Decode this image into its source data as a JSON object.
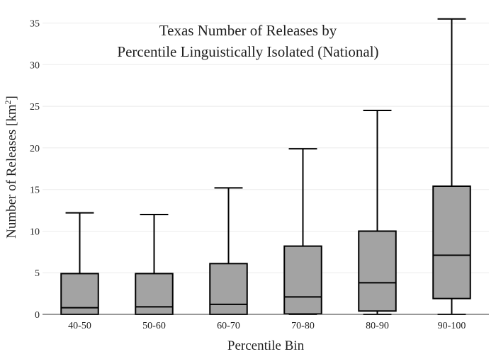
{
  "chart_data": {
    "type": "box",
    "title_line1": "Texas Number of Releases by",
    "title_line2": "Percentile Linguistically Isolated (National)",
    "xlabel": "Percentile Bin",
    "ylabel_main": "Number of Releases  [km",
    "ylabel_sup": "2",
    "ylabel_end": "]",
    "ylim": [
      0,
      36.5
    ],
    "yticks": [
      0,
      5,
      10,
      15,
      20,
      25,
      30,
      35
    ],
    "grid": true,
    "box_color": "#a3a3a3",
    "line_color": "#000000",
    "categories": [
      "40-50",
      "50-60",
      "60-70",
      "70-80",
      "80-90",
      "90-100"
    ],
    "boxes": [
      {
        "min": 0,
        "q1": 0,
        "median": 0.8,
        "q3": 4.9,
        "max": 12.2
      },
      {
        "min": 0,
        "q1": 0,
        "median": 0.9,
        "q3": 4.9,
        "max": 12.0
      },
      {
        "min": 0,
        "q1": 0,
        "median": 1.2,
        "q3": 6.1,
        "max": 15.2
      },
      {
        "min": 0,
        "q1": 0.05,
        "median": 2.1,
        "q3": 8.2,
        "max": 19.9
      },
      {
        "min": 0,
        "q1": 0.4,
        "median": 3.8,
        "q3": 10.0,
        "max": 24.5
      },
      {
        "min": 0,
        "q1": 1.9,
        "median": 7.1,
        "q3": 15.4,
        "max": 35.5
      }
    ]
  }
}
